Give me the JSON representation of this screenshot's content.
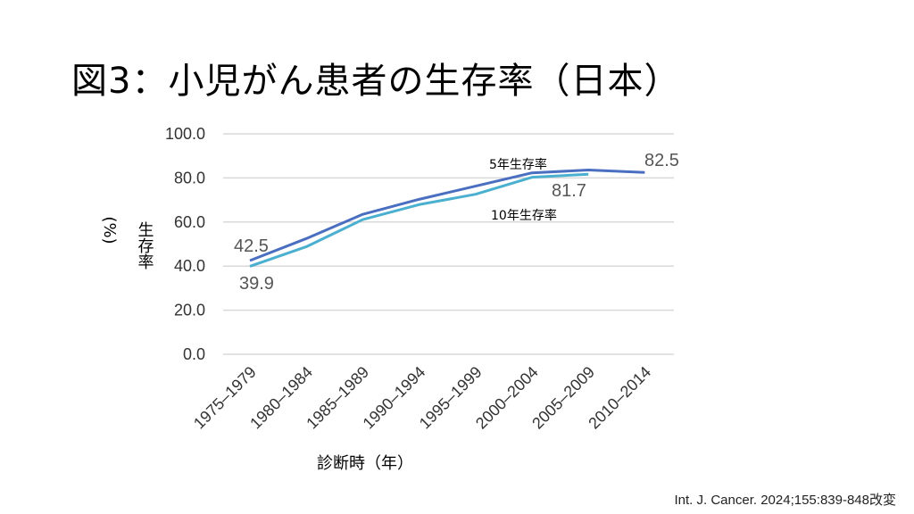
{
  "title": "図3：小児がん患者の生存率（日本）",
  "source": "Int. J. Cancer. 2024;155:839-848改変",
  "chart_data": {
    "type": "line",
    "title": "図3：小児がん患者の生存率（日本）",
    "xlabel": "診断時（年）",
    "ylabel": "生存率（%）",
    "ylabel_main": "生存率",
    "ylabel_unit": "(%)",
    "ylim": [
      0,
      100
    ],
    "yticks": [
      "0.0",
      "20.0",
      "40.0",
      "60.0",
      "80.0",
      "100.0"
    ],
    "grid": true,
    "categories": [
      "1975–1979",
      "1980–1984",
      "1985–1989",
      "1990–1994",
      "1995–1999",
      "2000–2004",
      "2005–2009",
      "2010–2014"
    ],
    "series": [
      {
        "name": "5年生存率",
        "color": "#4a6fc0",
        "values": [
          42.5,
          52.5,
          63.5,
          70.3,
          76.3,
          82.3,
          83.6,
          82.5
        ]
      },
      {
        "name": "10年生存率",
        "color": "#4bb0d0",
        "values": [
          39.9,
          48.8,
          61.1,
          67.9,
          72.6,
          80.3,
          81.7,
          null
        ]
      }
    ],
    "data_labels": [
      {
        "series": 0,
        "index": 0,
        "text": "42.5"
      },
      {
        "series": 1,
        "index": 0,
        "text": "39.9"
      },
      {
        "series": 1,
        "index": 6,
        "text": "81.7"
      },
      {
        "series": 0,
        "index": 7,
        "text": "82.5"
      }
    ]
  }
}
